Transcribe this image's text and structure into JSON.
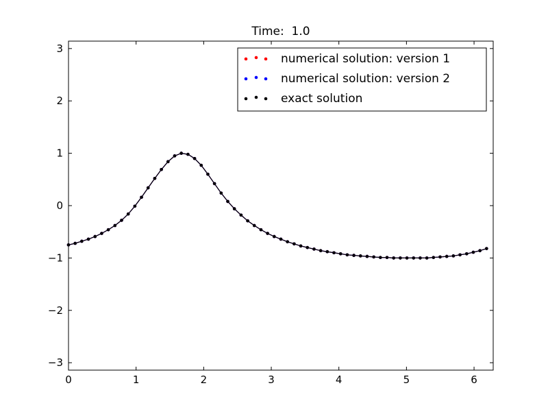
{
  "chart_data": {
    "type": "line",
    "title": "Time:  1.0",
    "xlabel": "",
    "ylabel": "",
    "xlim": [
      0,
      6.2832
    ],
    "ylim": [
      -3.14159,
      3.14159
    ],
    "xticks": [
      0,
      1,
      2,
      3,
      4,
      5,
      6
    ],
    "xtick_labels": [
      "0",
      "1",
      "2",
      "3",
      "4",
      "5",
      "6"
    ],
    "yticks": [
      -3,
      -2,
      -1,
      0,
      1,
      2,
      3
    ],
    "ytick_labels": [
      "−3",
      "−2",
      "−1",
      "0",
      "1",
      "2",
      "3"
    ],
    "grid": false,
    "legend_position": "top-right",
    "x": [
      0.0,
      0.0982,
      0.1963,
      0.2945,
      0.3927,
      0.4909,
      0.589,
      0.6872,
      0.7854,
      0.8836,
      0.9817,
      1.0799,
      1.1781,
      1.2763,
      1.3744,
      1.4726,
      1.5708,
      1.669,
      1.7671,
      1.8653,
      1.9635,
      2.0617,
      2.1598,
      2.258,
      2.3562,
      2.4544,
      2.5525,
      2.6507,
      2.7489,
      2.8471,
      2.9452,
      3.0434,
      3.1416,
      3.2398,
      3.3379,
      3.4361,
      3.5343,
      3.6325,
      3.7306,
      3.8288,
      3.927,
      4.0252,
      4.1233,
      4.2215,
      4.3197,
      4.4179,
      4.516,
      4.6142,
      4.7124,
      4.8106,
      4.9087,
      5.0069,
      5.1051,
      5.2033,
      5.3014,
      5.3996,
      5.4978,
      5.596,
      5.6941,
      5.7923,
      5.8905,
      5.9887,
      6.0868,
      6.185
    ],
    "series": [
      {
        "name": "numerical solution: version 1",
        "color": "#ff0000",
        "values": [
          -0.75,
          -0.72,
          -0.68,
          -0.64,
          -0.59,
          -0.53,
          -0.46,
          -0.38,
          -0.28,
          -0.16,
          -0.01,
          0.16,
          0.34,
          0.52,
          0.69,
          0.84,
          0.95,
          1.0,
          0.98,
          0.9,
          0.77,
          0.6,
          0.42,
          0.24,
          0.08,
          -0.06,
          -0.18,
          -0.29,
          -0.38,
          -0.46,
          -0.53,
          -0.59,
          -0.64,
          -0.69,
          -0.73,
          -0.77,
          -0.8,
          -0.83,
          -0.86,
          -0.88,
          -0.9,
          -0.92,
          -0.94,
          -0.95,
          -0.96,
          -0.97,
          -0.98,
          -0.99,
          -0.99,
          -1.0,
          -1.0,
          -1.0,
          -1.0,
          -1.0,
          -1.0,
          -0.99,
          -0.98,
          -0.97,
          -0.96,
          -0.94,
          -0.92,
          -0.89,
          -0.86,
          -0.82
        ]
      },
      {
        "name": "numerical solution: version 2",
        "color": "#0000ff",
        "values": [
          -0.75,
          -0.72,
          -0.68,
          -0.64,
          -0.59,
          -0.53,
          -0.46,
          -0.38,
          -0.28,
          -0.16,
          -0.01,
          0.16,
          0.34,
          0.52,
          0.69,
          0.84,
          0.95,
          1.0,
          0.98,
          0.9,
          0.77,
          0.6,
          0.42,
          0.24,
          0.08,
          -0.06,
          -0.18,
          -0.29,
          -0.38,
          -0.46,
          -0.53,
          -0.59,
          -0.64,
          -0.69,
          -0.73,
          -0.77,
          -0.8,
          -0.83,
          -0.86,
          -0.88,
          -0.9,
          -0.92,
          -0.94,
          -0.95,
          -0.96,
          -0.97,
          -0.98,
          -0.99,
          -0.99,
          -1.0,
          -1.0,
          -1.0,
          -1.0,
          -1.0,
          -1.0,
          -0.99,
          -0.98,
          -0.97,
          -0.96,
          -0.94,
          -0.92,
          -0.89,
          -0.86,
          -0.82
        ]
      },
      {
        "name": "exact solution",
        "color": "#000000",
        "values": [
          -0.75,
          -0.72,
          -0.68,
          -0.64,
          -0.59,
          -0.53,
          -0.46,
          -0.38,
          -0.28,
          -0.16,
          -0.01,
          0.16,
          0.34,
          0.52,
          0.69,
          0.84,
          0.95,
          1.0,
          0.98,
          0.9,
          0.77,
          0.6,
          0.42,
          0.24,
          0.08,
          -0.06,
          -0.18,
          -0.29,
          -0.38,
          -0.46,
          -0.53,
          -0.59,
          -0.64,
          -0.69,
          -0.73,
          -0.77,
          -0.8,
          -0.83,
          -0.86,
          -0.88,
          -0.9,
          -0.92,
          -0.94,
          -0.95,
          -0.96,
          -0.97,
          -0.98,
          -0.99,
          -0.99,
          -1.0,
          -1.0,
          -1.0,
          -1.0,
          -1.0,
          -1.0,
          -0.99,
          -0.98,
          -0.97,
          -0.96,
          -0.94,
          -0.92,
          -0.89,
          -0.86,
          -0.82
        ]
      }
    ]
  }
}
